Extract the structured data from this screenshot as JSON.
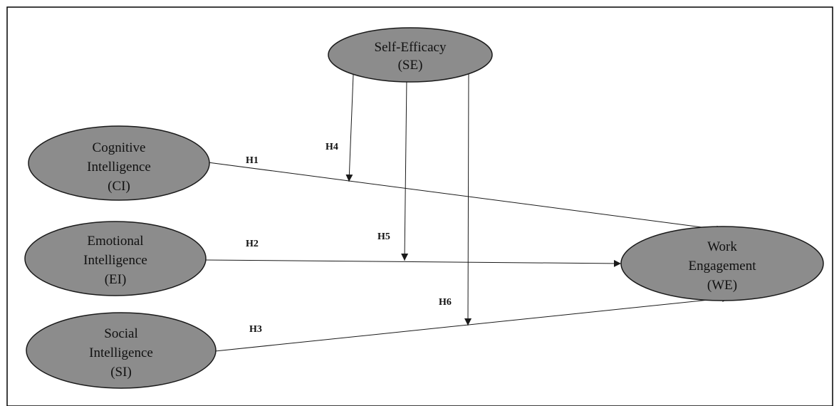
{
  "nodes": {
    "se": {
      "line1": "Self-Efficacy",
      "line2": "(SE)"
    },
    "ci": {
      "line1": "Cognitive",
      "line2": "Intelligence",
      "line3": "(CI)"
    },
    "ei": {
      "line1": "Emotional",
      "line2": "Intelligence",
      "line3": "(EI)"
    },
    "si": {
      "line1": "Social",
      "line2": "Intelligence",
      "line3": "(SI)"
    },
    "we": {
      "line1": "Work",
      "line2": "Engagement",
      "line3": "(WE)"
    }
  },
  "hypotheses": {
    "h1": "H1",
    "h2": "H2",
    "h3": "H3",
    "h4": "H4",
    "h5": "H5",
    "h6": "H6"
  },
  "colors": {
    "node_fill": "#8c8c8c",
    "line": "#1a1a1a"
  }
}
